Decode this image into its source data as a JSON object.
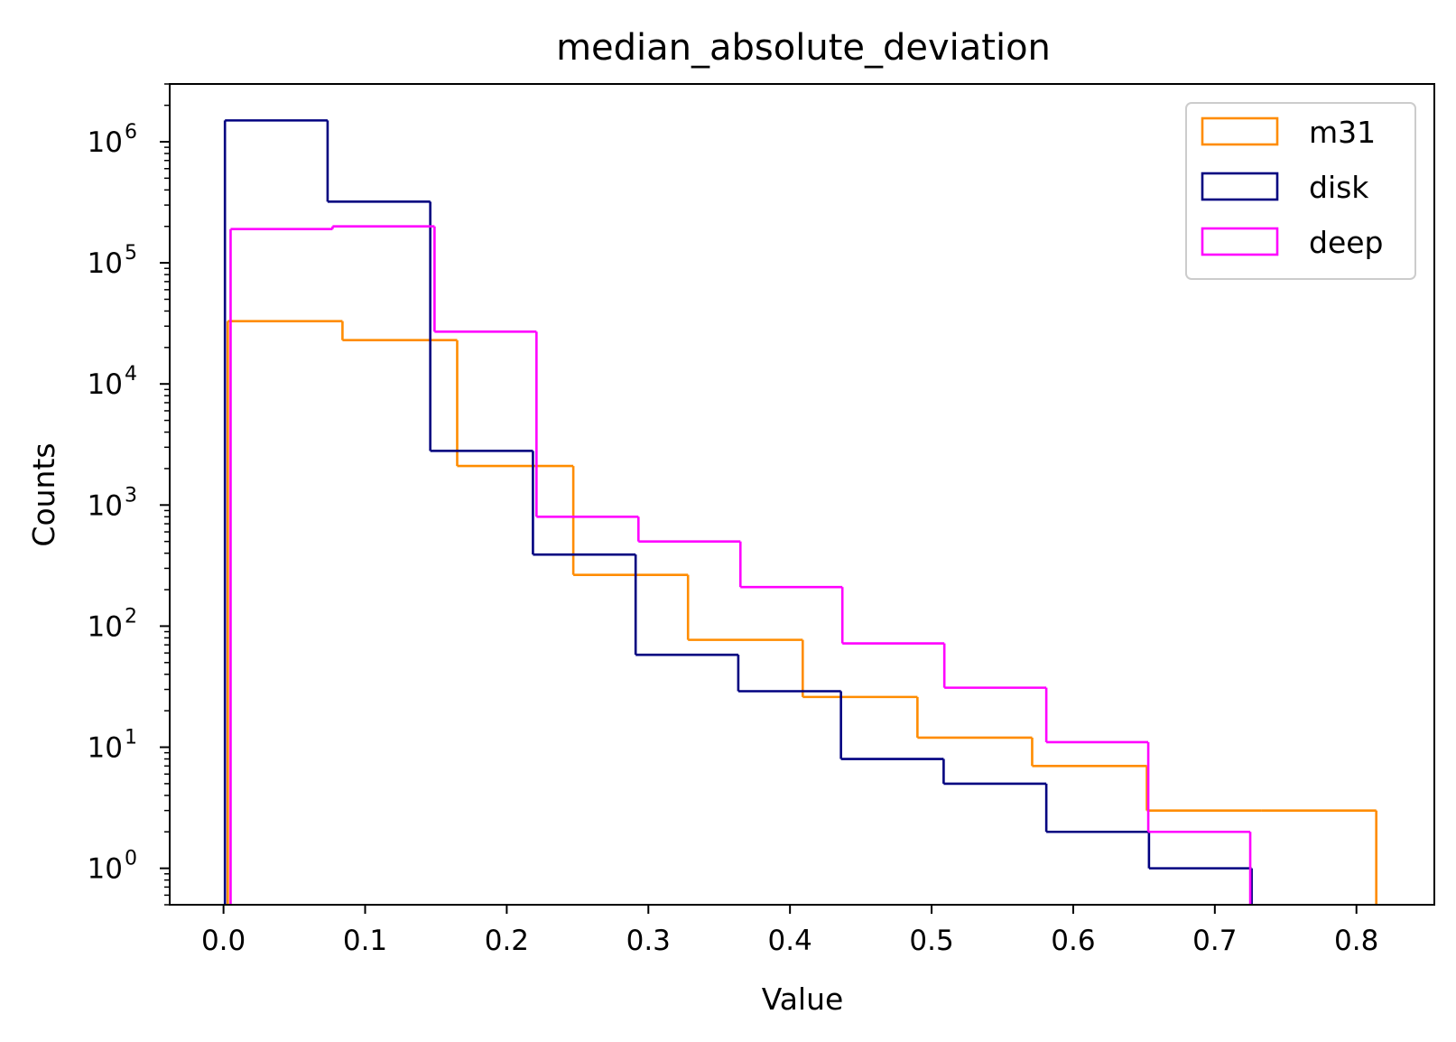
{
  "chart_data": {
    "type": "histogram",
    "title": "median_absolute_deviation",
    "xlabel": "Value",
    "ylabel": "Counts",
    "xlim": [
      -0.038,
      0.855
    ],
    "ylim": [
      0.5,
      3000000
    ],
    "yscale": "log",
    "x_ticks": [
      0.0,
      0.1,
      0.2,
      0.3,
      0.4,
      0.5,
      0.6,
      0.7,
      0.8
    ],
    "x_tick_labels": [
      "0.0",
      "0.1",
      "0.2",
      "0.3",
      "0.4",
      "0.5",
      "0.6",
      "0.7",
      "0.8"
    ],
    "y_ticks": [
      1,
      10,
      100,
      1000,
      10000,
      100000,
      1000000
    ],
    "y_tick_base": "10",
    "y_tick_exponents": [
      "0",
      "1",
      "2",
      "3",
      "4",
      "5",
      "6"
    ],
    "grid": false,
    "legend_position": "top-right",
    "series": [
      {
        "name": "m31",
        "color": "#ff8c00",
        "edges": [
          0.003,
          0.084,
          0.165,
          0.247,
          0.328,
          0.409,
          0.49,
          0.571,
          0.652,
          0.733,
          0.814
        ],
        "counts": [
          33000,
          23000,
          2100,
          265,
          77,
          26,
          12,
          7,
          3,
          3
        ]
      },
      {
        "name": "disk",
        "color": "#000080",
        "edges": [
          0.001,
          0.0735,
          0.146,
          0.2185,
          0.291,
          0.3635,
          0.436,
          0.5085,
          0.581,
          0.6535,
          0.726
        ],
        "counts": [
          1500000,
          320000,
          2800,
          390,
          58,
          29,
          8,
          5,
          2,
          1
        ]
      },
      {
        "name": "deep",
        "color": "#ff00ff",
        "edges": [
          0.005,
          0.077,
          0.149,
          0.221,
          0.293,
          0.365,
          0.437,
          0.509,
          0.581,
          0.653,
          0.725
        ],
        "counts": [
          190000,
          200000,
          27000,
          800,
          500,
          210,
          72,
          31,
          11,
          2
        ]
      }
    ]
  }
}
